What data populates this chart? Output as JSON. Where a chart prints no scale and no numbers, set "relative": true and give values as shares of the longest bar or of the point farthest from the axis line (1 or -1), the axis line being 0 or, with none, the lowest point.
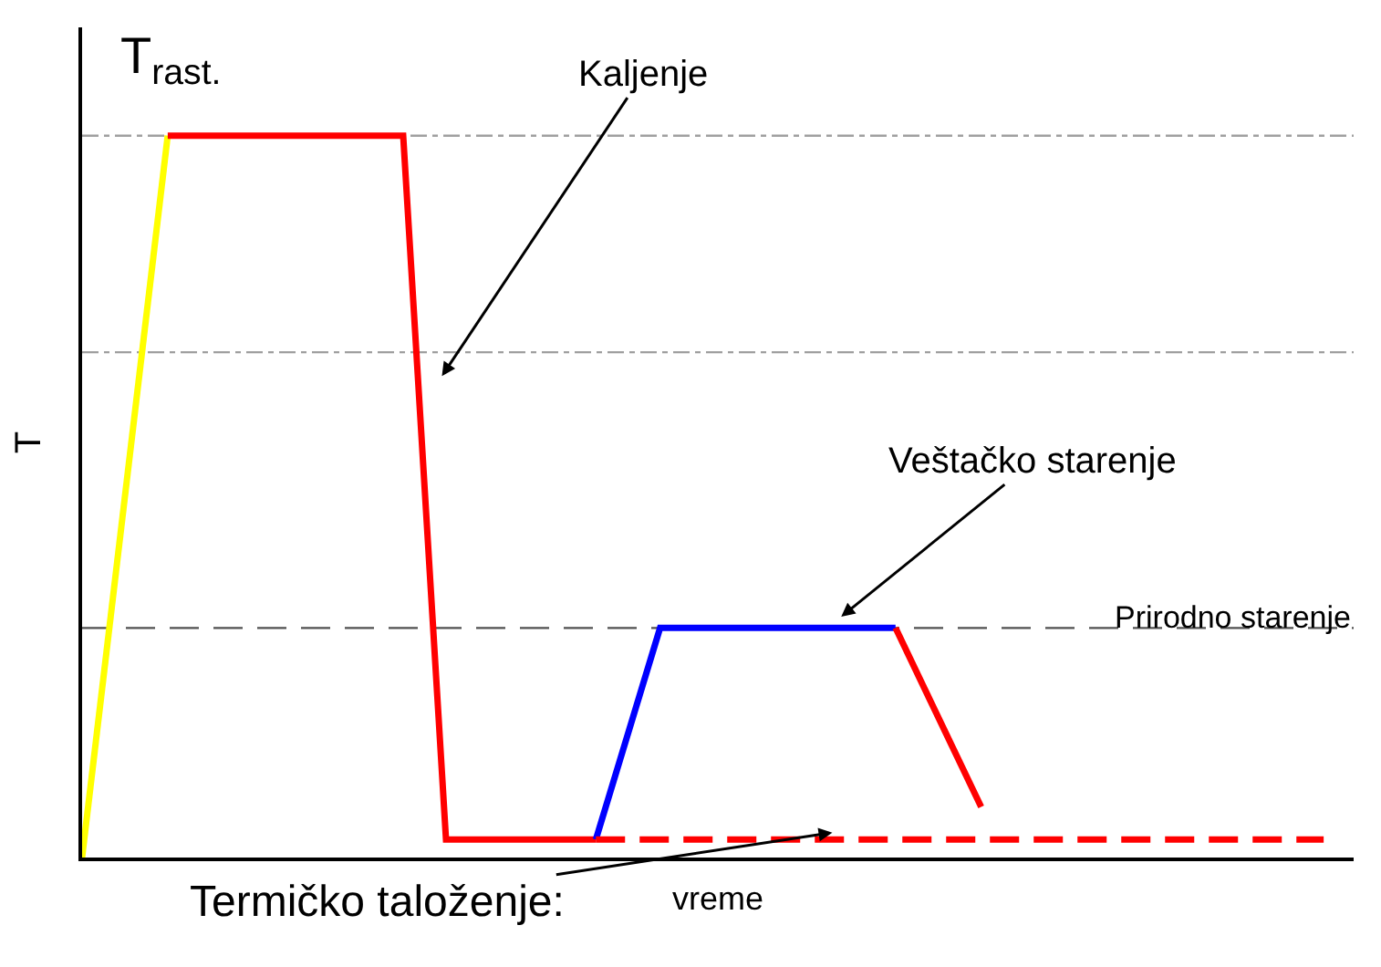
{
  "chart_data": {
    "type": "line",
    "relative": true,
    "xlabel": "vreme",
    "ylabel": "T",
    "tick_labels": false,
    "grid": false,
    "marker": "none",
    "categories": [
      null,
      null,
      null,
      null,
      null,
      null,
      null,
      null,
      null,
      null,
      null,
      null,
      null,
      null,
      null,
      null,
      null,
      null,
      null,
      null,
      null,
      null,
      null,
      null,
      null,
      null,
      null,
      null,
      null,
      null,
      null,
      null,
      null,
      null,
      null,
      null,
      null,
      null,
      null,
      null,
      null,
      null,
      null,
      null,
      null,
      null,
      null,
      null,
      null,
      null,
      null,
      null,
      null,
      null,
      null,
      null,
      null,
      null,
      null,
      null
    ],
    "series": [
      {
        "color": "#ffff00",
        "values": [
          0,
          null,
          null,
          null,
          1,
          null,
          null,
          null,
          null,
          null,
          null,
          null,
          null,
          null,
          null,
          null,
          null,
          null,
          null,
          null,
          null,
          null,
          null,
          null,
          null,
          null,
          null,
          null,
          null,
          null,
          null,
          null,
          null,
          null,
          null,
          null,
          null,
          null,
          null,
          null,
          null,
          null,
          null,
          null,
          null,
          null,
          null,
          null,
          null,
          null,
          null,
          null,
          null,
          null,
          null,
          null,
          null,
          null,
          null,
          null
        ]
      },
      {
        "color": "#ff0000",
        "values": [
          null,
          null,
          null,
          null,
          1,
          null,
          null,
          null,
          null,
          null,
          null,
          null,
          null,
          null,
          null,
          1,
          null,
          0.025,
          null,
          null,
          null,
          null,
          null,
          null,
          0.025,
          null,
          null,
          null,
          null,
          null,
          null,
          null,
          null,
          null,
          null,
          null,
          null,
          null,
          null,
          null,
          null,
          null,
          null,
          null,
          null,
          null,
          null,
          null,
          null,
          null,
          null,
          null,
          null,
          null,
          null,
          null,
          null,
          null,
          null,
          null
        ]
      },
      {
        "color": "#0000ff",
        "values": [
          null,
          null,
          null,
          null,
          null,
          null,
          null,
          null,
          null,
          null,
          null,
          null,
          null,
          null,
          null,
          null,
          null,
          null,
          null,
          null,
          null,
          null,
          null,
          null,
          0.025,
          null,
          null,
          0.318,
          null,
          null,
          null,
          null,
          null,
          null,
          null,
          null,
          null,
          null,
          0.318,
          null,
          null,
          null,
          null,
          null,
          null,
          null,
          null,
          null,
          null,
          null,
          null,
          null,
          null,
          null,
          null,
          null,
          null,
          null,
          null,
          null
        ]
      },
      {
        "color": "#ff0000",
        "values": [
          null,
          null,
          null,
          null,
          null,
          null,
          null,
          null,
          null,
          null,
          null,
          null,
          null,
          null,
          null,
          null,
          null,
          null,
          null,
          null,
          null,
          null,
          null,
          null,
          null,
          null,
          null,
          null,
          null,
          null,
          null,
          null,
          null,
          null,
          null,
          null,
          null,
          null,
          0.318,
          null,
          null,
          null,
          0.07,
          null,
          null,
          null,
          null,
          null,
          null,
          null,
          null,
          null,
          null,
          null,
          null,
          null,
          null,
          null,
          null,
          null
        ]
      },
      {
        "color": "#ff0000",
        "line_style": "dashed",
        "values": [
          null,
          null,
          null,
          null,
          null,
          null,
          null,
          null,
          null,
          null,
          null,
          null,
          null,
          null,
          null,
          null,
          null,
          null,
          null,
          null,
          null,
          null,
          null,
          null,
          0.025,
          null,
          null,
          null,
          null,
          null,
          null,
          null,
          null,
          null,
          null,
          null,
          null,
          null,
          null,
          null,
          null,
          null,
          null,
          null,
          null,
          null,
          null,
          null,
          null,
          null,
          null,
          null,
          null,
          null,
          null,
          null,
          null,
          null,
          0.025,
          null
        ]
      }
    ],
    "ref_lines": [
      {
        "axis": "y",
        "value": 1,
        "color": "#a0a0a0",
        "line_style": "dashdot"
      },
      {
        "axis": "y",
        "value": 0.7,
        "color": "#a0a0a0",
        "line_style": "dashdot"
      },
      {
        "axis": "y",
        "value": 0.318,
        "color": "#505050",
        "line_style": "dashed"
      }
    ],
    "annotations": [
      "T$_{rast.}$",
      "Kaljenje",
      "Veštačko starenje",
      "Prirodno starenje",
      "Termičko taloženje:"
    ]
  }
}
